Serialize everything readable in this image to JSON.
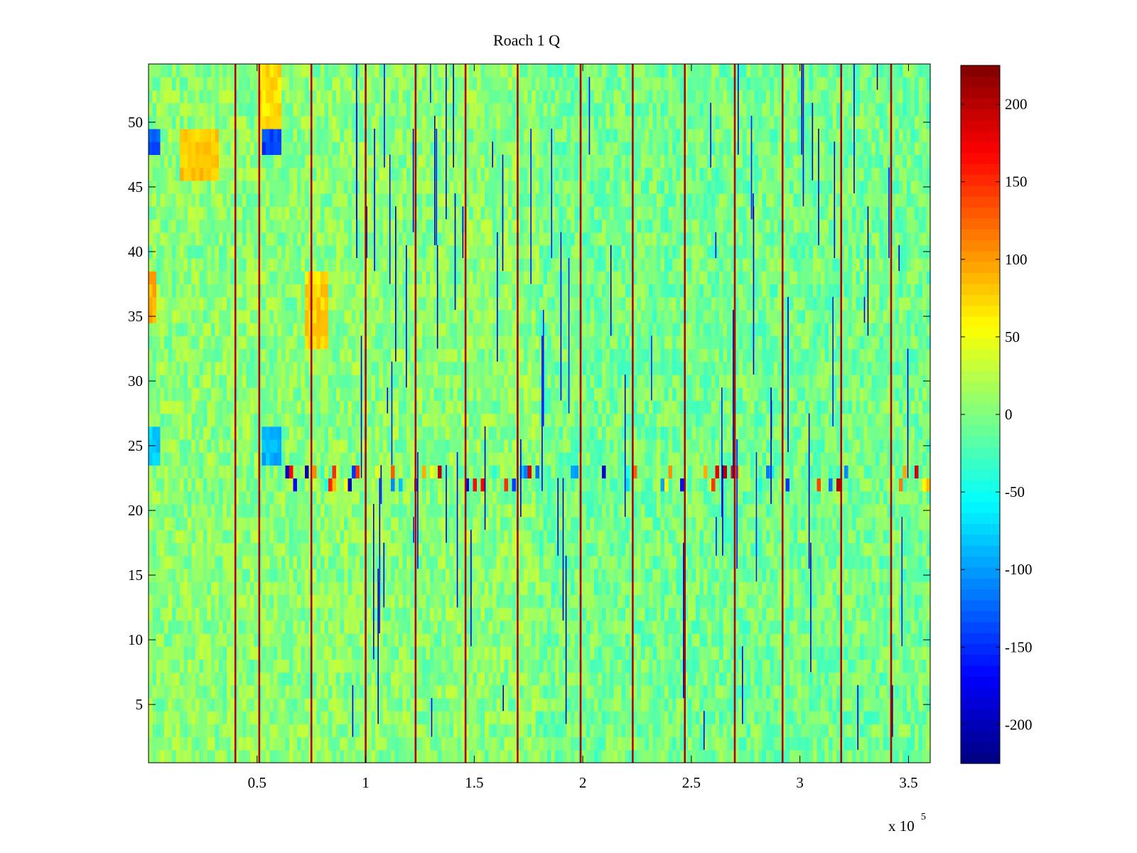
{
  "chart_data": {
    "type": "heatmap",
    "title": "Roach 1 Q",
    "xlabel": "",
    "ylabel": "",
    "colormap": "jet",
    "x_range": [
      0,
      360000
    ],
    "y_range": [
      0.5,
      54.5
    ],
    "rows": 54,
    "clim": [
      -225,
      225
    ],
    "x_ticks": [
      50000,
      100000,
      150000,
      200000,
      250000,
      300000,
      350000
    ],
    "x_tick_labels": [
      "0.5",
      "1",
      "1.5",
      "2",
      "2.5",
      "3",
      "3.5"
    ],
    "x_exponent_label": "x 10",
    "x_exponent_power": "5",
    "y_ticks": [
      5,
      10,
      15,
      20,
      25,
      30,
      35,
      40,
      45,
      50
    ],
    "y_tick_labels": [
      "5",
      "10",
      "15",
      "20",
      "25",
      "30",
      "35",
      "40",
      "45",
      "50"
    ],
    "colorbar_ticks": [
      -200,
      -150,
      -100,
      -50,
      0,
      50,
      100,
      150,
      200
    ],
    "colorbar_tick_labels": [
      "-200",
      "-150",
      "-100",
      "-50",
      "0",
      "50",
      "100",
      "150",
      "200"
    ],
    "baseline_value": 5,
    "high_value_column_x": [
      40000,
      51000,
      75000,
      100000,
      123000,
      146000,
      170000,
      199000,
      223000,
      247000,
      270000,
      292000,
      319000,
      342000
    ],
    "high_value_row_bands": [
      {
        "rows": [
          46,
          49
        ],
        "x": [
          14000,
          32000
        ],
        "value": 80
      },
      {
        "rows": [
          35,
          38
        ],
        "x": [
          0,
          4000
        ],
        "value": 90
      },
      {
        "rows": [
          48,
          54
        ],
        "x": [
          50000,
          62000
        ],
        "value": 70
      },
      {
        "rows": [
          33,
          38
        ],
        "x": [
          72000,
          82000
        ],
        "value": 75
      }
    ],
    "low_value_regions": [
      {
        "rows": [
          48,
          49
        ],
        "x": [
          0,
          6000
        ],
        "value": -130
      },
      {
        "rows": [
          48,
          49
        ],
        "x": [
          52000,
          62000
        ],
        "value": -140
      },
      {
        "rows": [
          24,
          26
        ],
        "x": [
          52000,
          62000
        ],
        "value": -90
      },
      {
        "rows": [
          24,
          26
        ],
        "x": [
          0,
          6000
        ],
        "value": -80
      }
    ],
    "noisy_row_band": {
      "rows": [
        22,
        23
      ],
      "value_range": [
        -200,
        200
      ]
    }
  }
}
